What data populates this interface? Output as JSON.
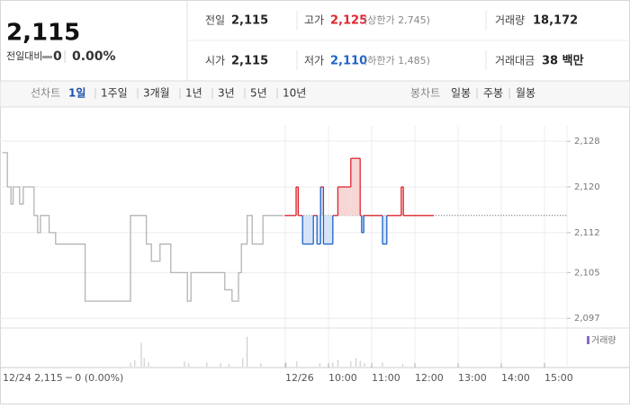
{
  "header": {
    "price": "2,115",
    "change_label": "전일대비",
    "change": "0",
    "change_pct": "0.00%"
  },
  "stats": [
    {
      "label": "전일",
      "value": "2,115"
    },
    {
      "label": "고가",
      "value": "2,125",
      "note": "(상한가 2,745)"
    },
    {
      "label": "거래량",
      "value": "18,172"
    },
    {
      "label": "시가",
      "value": "2,115"
    },
    {
      "label": "저가",
      "value": "2,110",
      "note": "(하한가 1,485)"
    },
    {
      "label": "거래대금",
      "value": "38 백만"
    }
  ],
  "tabs": {
    "line_label": "선차트",
    "periods": [
      "1일",
      "1주일",
      "3개월",
      "1년",
      "3년",
      "5년",
      "10년"
    ],
    "selected": 0,
    "candle_label": "봉차트",
    "candles": [
      "일봉",
      "주봉",
      "월봉"
    ]
  },
  "chart_data": {
    "type": "line",
    "prev_day_label": "12/24 2,115 ─ 0 (0.00%)",
    "volume_label": "거래량",
    "ylim": [
      2095.3,
      2130.7
    ],
    "yticks": [
      {
        "value": 2128,
        "label": "2,128"
      },
      {
        "value": 2120,
        "label": "2,120"
      },
      {
        "value": 2112,
        "label": "2,112"
      },
      {
        "value": 2105,
        "label": "2,105"
      },
      {
        "value": 2097,
        "label": "2,097"
      }
    ],
    "xlim": [
      -411.25,
      376.25
    ],
    "xticks": [
      {
        "value": -15,
        "label": "12/26"
      },
      {
        "value": 45,
        "label": "10:00"
      },
      {
        "value": 105,
        "label": "11:00"
      },
      {
        "value": 165,
        "label": "12:00"
      },
      {
        "value": 225,
        "label": "13:00"
      },
      {
        "value": 285,
        "label": "14:00"
      },
      {
        "value": 345,
        "label": "15:00"
      }
    ],
    "base": 2115,
    "prev_color": "#b4b4b4",
    "up_color": "#e0242f",
    "down_color": "#1e63c8",
    "up_fill": "#f7d6d6",
    "down_fill": "#d6e4f6",
    "volume_color": "#c4c4c4",
    "prev": {
      "x": [
        -408,
        -401,
        -401,
        -396,
        -396,
        -393,
        -393,
        -384,
        -384,
        -379,
        -379,
        -364,
        -364,
        -359,
        -359,
        -355,
        -355,
        -343,
        -343,
        -334,
        -334,
        -293,
        -293,
        -230,
        -230,
        -208,
        -208,
        -201,
        -201,
        -189,
        -189,
        -174,
        -174,
        -151,
        -151,
        -146,
        -146,
        -99,
        -99,
        -89,
        -89,
        -80,
        -80,
        -76,
        -76,
        -68,
        -68,
        -61,
        -61,
        -46,
        -46,
        -18
      ],
      "values": [
        2126,
        2126,
        2120,
        2120,
        2117,
        2117,
        2120,
        2120,
        2117,
        2117,
        2120,
        2120,
        2115,
        2115,
        2112,
        2112,
        2115,
        2115,
        2112,
        2112,
        2110,
        2110,
        2100,
        2100,
        2115,
        2115,
        2110,
        2110,
        2107,
        2107,
        2110,
        2110,
        2105,
        2105,
        2100,
        2100,
        2105,
        2105,
        2102,
        2102,
        2100,
        2100,
        2105,
        2105,
        2110,
        2110,
        2115,
        2115,
        2110,
        2110,
        2115,
        2115
      ]
    },
    "today": {
      "x": [
        -16,
        0,
        0,
        3,
        3,
        9,
        9,
        24,
        24,
        29,
        29,
        34,
        34,
        38,
        38,
        51,
        51,
        58,
        58,
        76,
        76,
        89,
        89,
        91,
        91,
        94,
        94,
        120,
        120,
        126,
        126,
        146,
        146,
        149,
        149,
        191
      ],
      "values": [
        2115,
        2115,
        2120,
        2120,
        2115,
        2115,
        2110,
        2110,
        2115,
        2115,
        2110,
        2110,
        2120,
        2120,
        2110,
        2110,
        2115,
        2115,
        2120,
        2120,
        2125,
        2125,
        2115,
        2115,
        2112,
        2112,
        2115,
        2115,
        2110,
        2110,
        2115,
        2115,
        2120,
        2120,
        2115,
        2115
      ]
    },
    "vlim": [
      0,
      40
    ],
    "volume": {
      "x": [
        -230,
        -224,
        -215,
        -211,
        -205,
        -155,
        -149,
        -124,
        -105,
        -93,
        -74,
        -68,
        -49,
        -14,
        1,
        33,
        51,
        58,
        76,
        83,
        89,
        95,
        120,
        148
      ],
      "values": [
        5,
        8,
        28,
        10,
        5,
        6,
        4,
        5,
        4,
        3,
        10,
        35,
        4,
        5,
        6,
        4,
        5,
        8,
        6,
        10,
        7,
        4,
        5,
        3
      ]
    }
  }
}
